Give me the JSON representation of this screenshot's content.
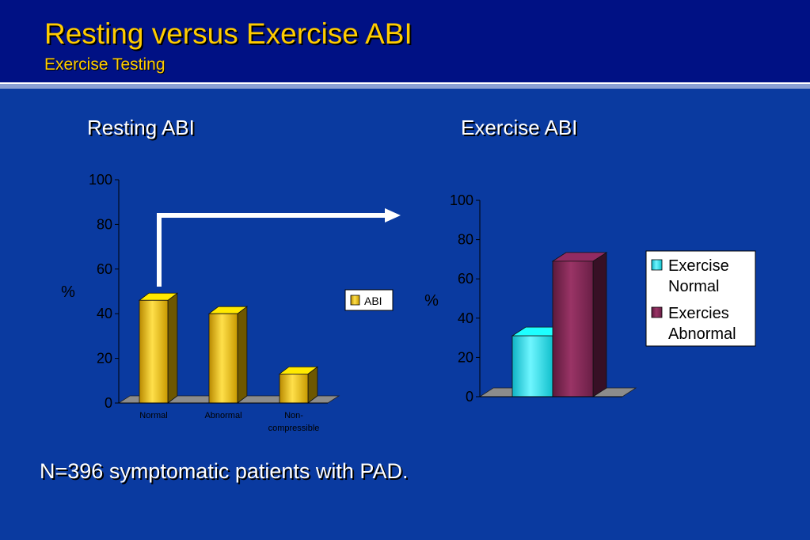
{
  "slide": {
    "title": "Resting versus Exercise ABI",
    "subtitle": "Exercise Testing",
    "footnote": "N=396 symptomatic patients with PAD."
  },
  "colors": {
    "background": "#0a3aa0",
    "header": "#001184",
    "title": "#ffcc00",
    "resting_bar": "#f2c200",
    "exercise_normal": "#19e0e6",
    "exercise_abnormal": "#7a2452"
  },
  "chart_data": [
    {
      "type": "bar",
      "title": "Resting ABI",
      "ylabel": "%",
      "ylim": [
        0,
        100
      ],
      "y_ticks": [
        "0",
        "20",
        "40",
        "60",
        "80",
        "100"
      ],
      "categories": [
        "Normal",
        "Abnormal",
        "Non-compressible"
      ],
      "category_labels": [
        [
          "Normal"
        ],
        [
          "Abnormal"
        ],
        [
          "Non-",
          "compressible"
        ]
      ],
      "series": [
        {
          "name": "ABI",
          "values": [
            46,
            40,
            13
          ],
          "color": "#f2c200"
        }
      ],
      "legend": "right",
      "grid": false
    },
    {
      "type": "bar",
      "title": "Exercise ABI",
      "ylabel": "%",
      "ylim": [
        0,
        100
      ],
      "y_ticks": [
        "0",
        "20",
        "40",
        "60",
        "80",
        "100"
      ],
      "categories": [
        ""
      ],
      "series": [
        {
          "name": "Exercise Normal",
          "legend_lines": [
            "Exercise",
            "Normal"
          ],
          "values": [
            31
          ],
          "color": "#19e0e6"
        },
        {
          "name": "Exercies Abnormal",
          "legend_lines": [
            "Exercies",
            "Abnormal"
          ],
          "values": [
            69
          ],
          "color": "#7a2452"
        }
      ],
      "legend": "right",
      "grid": false
    }
  ]
}
